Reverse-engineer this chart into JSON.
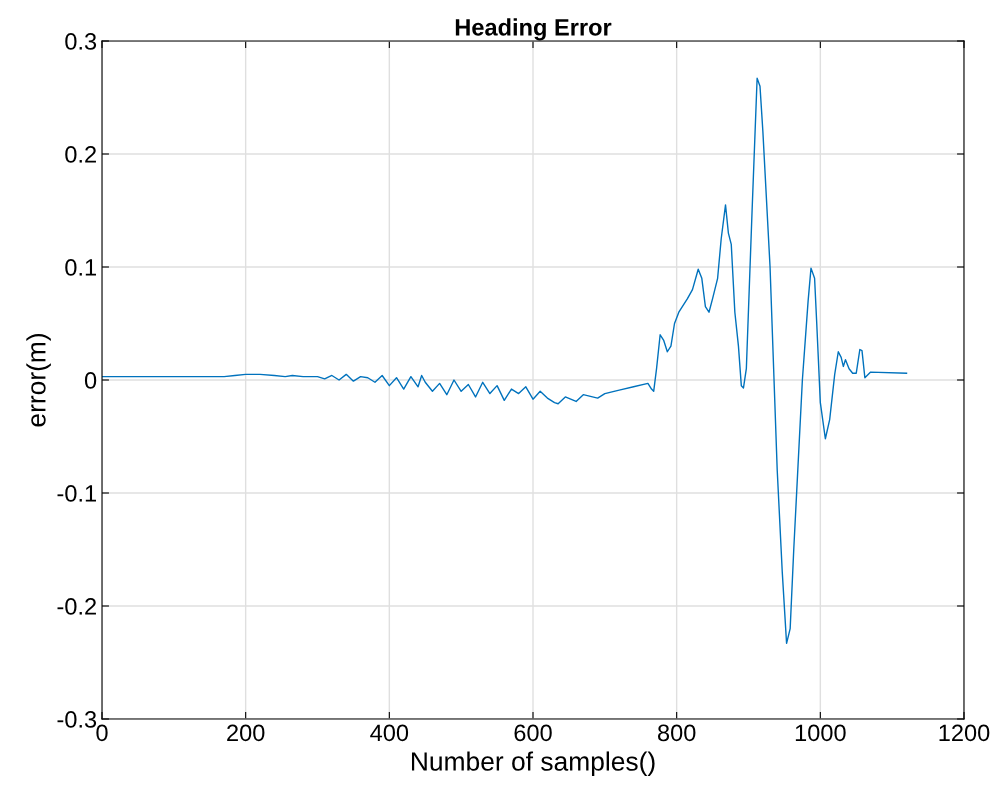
{
  "chart_data": {
    "type": "line",
    "title": "Heading Error",
    "xlabel": "Number of samples()",
    "ylabel": "error(m)",
    "x": [
      0,
      170,
      185,
      200,
      220,
      240,
      255,
      265,
      280,
      300,
      310,
      320,
      330,
      340,
      350,
      360,
      370,
      380,
      390,
      400,
      410,
      420,
      430,
      440,
      445,
      450,
      460,
      470,
      480,
      490,
      500,
      510,
      520,
      530,
      540,
      550,
      560,
      570,
      580,
      590,
      600,
      610,
      620,
      630,
      635,
      645,
      660,
      670,
      690,
      700,
      720,
      740,
      760,
      765,
      768,
      772,
      777,
      782,
      787,
      792,
      797,
      803,
      815,
      822,
      830,
      835,
      840,
      845,
      850,
      857,
      862,
      868,
      872,
      876,
      881,
      886,
      890,
      893,
      897,
      905,
      912,
      916,
      920,
      930,
      940,
      947,
      953,
      958,
      963,
      975,
      983,
      987,
      992,
      995,
      1000,
      1007,
      1013,
      1020,
      1025,
      1029,
      1032,
      1035,
      1040,
      1045,
      1050,
      1055,
      1058,
      1062,
      1070,
      1120
    ],
    "series": [
      {
        "color": "#0072bd",
        "values": [
          0.003,
          0.003,
          0.004,
          0.005,
          0.005,
          0.004,
          0.003,
          0.004,
          0.003,
          0.003,
          0.001,
          0.004,
          0.0,
          0.005,
          -0.001,
          0.003,
          0.002,
          -0.002,
          0.004,
          -0.005,
          0.002,
          -0.008,
          0.003,
          -0.006,
          0.004,
          -0.002,
          -0.01,
          -0.003,
          -0.013,
          0.0,
          -0.01,
          -0.004,
          -0.015,
          -0.002,
          -0.012,
          -0.005,
          -0.018,
          -0.008,
          -0.012,
          -0.006,
          -0.017,
          -0.01,
          -0.016,
          -0.02,
          -0.021,
          -0.015,
          -0.019,
          -0.013,
          -0.016,
          -0.012,
          -0.009,
          -0.006,
          -0.003,
          -0.008,
          -0.01,
          0.01,
          0.04,
          0.035,
          0.025,
          0.03,
          0.05,
          0.06,
          0.072,
          0.08,
          0.098,
          0.09,
          0.065,
          0.06,
          0.072,
          0.09,
          0.125,
          0.155,
          0.13,
          0.12,
          0.06,
          0.03,
          -0.005,
          -0.007,
          0.01,
          0.15,
          0.267,
          0.26,
          0.22,
          0.1,
          -0.08,
          -0.17,
          -0.233,
          -0.22,
          -0.15,
          0.0,
          0.07,
          0.099,
          0.09,
          0.05,
          -0.02,
          -0.052,
          -0.035,
          0.005,
          0.025,
          0.02,
          0.012,
          0.018,
          0.01,
          0.006,
          0.006,
          0.027,
          0.026,
          0.002,
          0.007,
          0.006
        ]
      }
    ],
    "xlim": [
      0,
      1200
    ],
    "xticks": [
      0,
      200,
      400,
      600,
      800,
      1000,
      1200
    ],
    "ylim": [
      -0.3,
      0.3
    ],
    "yticks": [
      -0.3,
      -0.2,
      -0.1,
      0,
      0.1,
      0.2,
      0.3
    ],
    "grid": true
  }
}
